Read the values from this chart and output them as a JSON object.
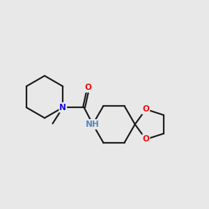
{
  "background_color": "#e8e8e8",
  "bond_color": "#1a1a1a",
  "N_color": "#1010ee",
  "O_color": "#ee1010",
  "NH_color": "#5588bb",
  "line_width": 1.6,
  "figsize": [
    3.0,
    3.0
  ],
  "dpi": 100,
  "font_size": 8.5,
  "xlim": [
    -2.8,
    4.2
  ],
  "ylim": [
    -2.0,
    2.2
  ]
}
